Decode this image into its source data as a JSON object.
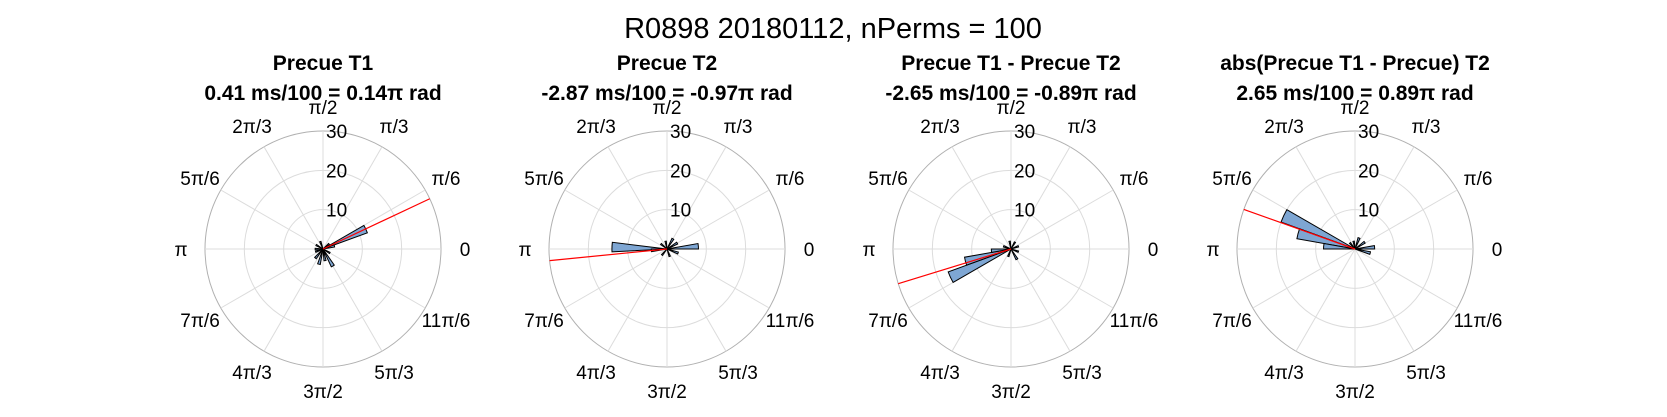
{
  "figure_title": "R0898 20180112, nPerms = 100",
  "theta_tick_labels": [
    "0",
    "π/6",
    "π/3",
    "π/2",
    "2π/3",
    "5π/6",
    "π",
    "7π/6",
    "4π/3",
    "3π/2",
    "5π/3",
    "11π/6"
  ],
  "colors": {
    "bar_fill": "#7ea6d3",
    "bar_edge": "#000000",
    "mean_line": "#ff0000",
    "grid": "#dcdcdc",
    "outer_ring": "#b0b0b0"
  },
  "chart_data": [
    {
      "type": "polar-histogram",
      "title": "Precue T1",
      "subtitle": "0.41 ms/100 = 0.14π rad",
      "rlim": [
        0,
        30
      ],
      "r_ticks": [
        10,
        20,
        30
      ],
      "bin_width_deg": 10,
      "mean_angle_rad": 0.44,
      "bins": [
        {
          "angle_deg": 25,
          "count": 12
        },
        {
          "angle_deg": 15,
          "count": 3
        },
        {
          "angle_deg": 40,
          "count": 2
        },
        {
          "angle_deg": 110,
          "count": 2
        },
        {
          "angle_deg": 150,
          "count": 2
        },
        {
          "angle_deg": 180,
          "count": 2
        },
        {
          "angle_deg": 200,
          "count": 2
        },
        {
          "angle_deg": 230,
          "count": 3
        },
        {
          "angle_deg": 255,
          "count": 4
        },
        {
          "angle_deg": 280,
          "count": 3
        },
        {
          "angle_deg": 300,
          "count": 5
        },
        {
          "angle_deg": 330,
          "count": 2
        }
      ]
    },
    {
      "type": "polar-histogram",
      "title": "Precue T2",
      "subtitle": "-2.87 ms/100 = -0.97π rad",
      "rlim": [
        0,
        30
      ],
      "r_ticks": [
        10,
        20,
        30
      ],
      "bin_width_deg": 10,
      "mean_angle_rad": 3.24,
      "bins": [
        {
          "angle_deg": 178,
          "count": 14
        },
        {
          "angle_deg": 185,
          "count": 4
        },
        {
          "angle_deg": 5,
          "count": 8
        },
        {
          "angle_deg": 30,
          "count": 3
        },
        {
          "angle_deg": 60,
          "count": 3
        },
        {
          "angle_deg": 100,
          "count": 2
        },
        {
          "angle_deg": 140,
          "count": 2
        },
        {
          "angle_deg": 230,
          "count": 2
        },
        {
          "angle_deg": 290,
          "count": 2
        },
        {
          "angle_deg": 340,
          "count": 3
        }
      ]
    },
    {
      "type": "polar-histogram",
      "title": "Precue T1 - Precue T2",
      "subtitle": "-2.65 ms/100 = -0.89π rad",
      "rlim": [
        0,
        30
      ],
      "r_ticks": [
        10,
        20,
        30
      ],
      "bin_width_deg": 10,
      "mean_angle_rad": 3.44,
      "bins": [
        {
          "angle_deg": 205,
          "count": 17
        },
        {
          "angle_deg": 195,
          "count": 12
        },
        {
          "angle_deg": 185,
          "count": 5
        },
        {
          "angle_deg": 20,
          "count": 2
        },
        {
          "angle_deg": 60,
          "count": 2
        },
        {
          "angle_deg": 100,
          "count": 2
        },
        {
          "angle_deg": 160,
          "count": 2
        },
        {
          "angle_deg": 250,
          "count": 2
        },
        {
          "angle_deg": 300,
          "count": 3
        },
        {
          "angle_deg": 340,
          "count": 2
        }
      ]
    },
    {
      "type": "polar-histogram",
      "title": "abs(Precue T1 - Precue) T2",
      "subtitle": "2.65 ms/100 = 0.89π rad",
      "rlim": [
        0,
        30
      ],
      "r_ticks": [
        10,
        20,
        30
      ],
      "bin_width_deg": 10,
      "mean_angle_rad": 2.8,
      "bins": [
        {
          "angle_deg": 155,
          "count": 20
        },
        {
          "angle_deg": 165,
          "count": 15
        },
        {
          "angle_deg": 175,
          "count": 8
        },
        {
          "angle_deg": 5,
          "count": 5
        },
        {
          "angle_deg": 35,
          "count": 3
        },
        {
          "angle_deg": 70,
          "count": 3
        },
        {
          "angle_deg": 100,
          "count": 2
        },
        {
          "angle_deg": 130,
          "count": 2
        },
        {
          "angle_deg": 345,
          "count": 4
        }
      ]
    }
  ]
}
